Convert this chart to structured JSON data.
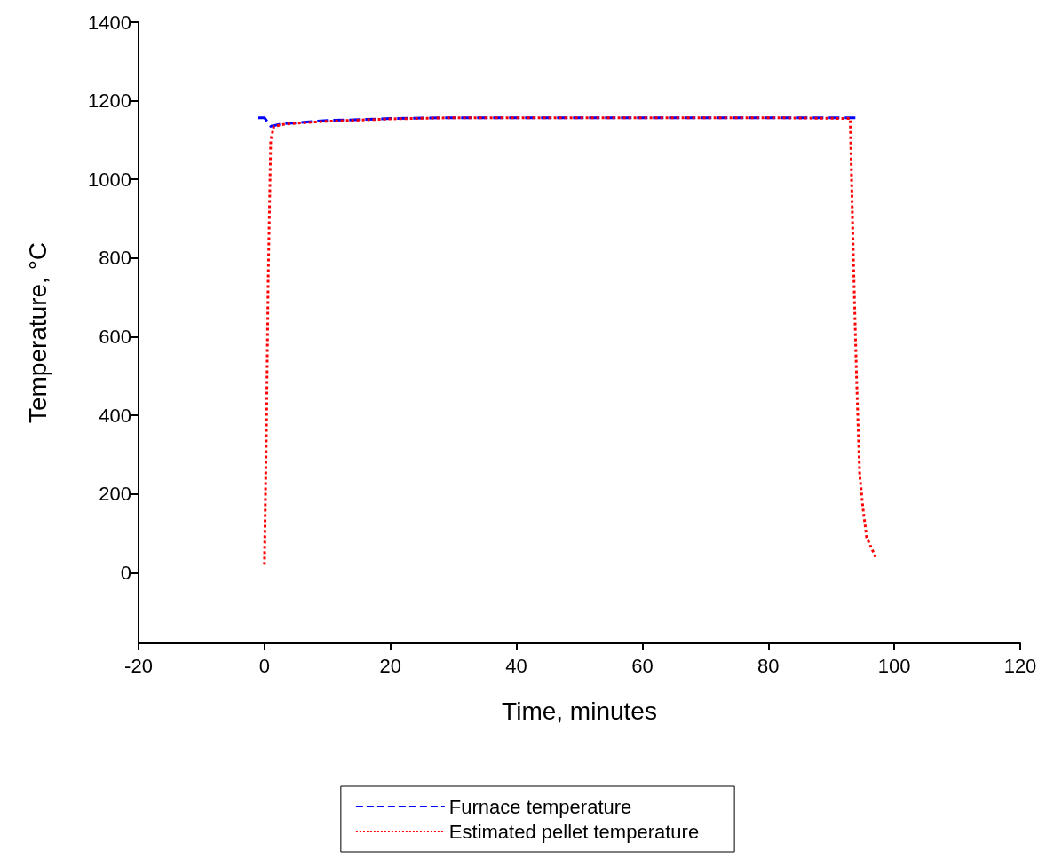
{
  "chart_data": {
    "type": "line",
    "xlabel": "Time, minutes",
    "ylabel": "Temperature, °C",
    "xlim": [
      -20,
      120
    ],
    "xticks": [
      -20,
      0,
      20,
      40,
      60,
      80,
      100,
      120
    ],
    "ylim": [
      -180,
      1400
    ],
    "yticks": [
      0,
      200,
      400,
      600,
      800,
      1000,
      1200,
      1400
    ],
    "grid": false,
    "legend": "bottom",
    "marker": "none",
    "series": [
      {
        "name": "Furnace temperature",
        "color": "#0000ff",
        "line_style": "dashed",
        "x": [
          -1,
          0,
          1,
          3,
          5,
          10,
          15,
          20,
          30,
          40,
          60,
          80,
          94
        ],
        "values": [
          1157,
          1157,
          1135,
          1142,
          1144,
          1150,
          1152,
          1155,
          1157,
          1157,
          1157,
          1157,
          1157
        ]
      },
      {
        "name": "Estimated pellet temperature",
        "color": "#ff0000",
        "line_style": "dotted",
        "x": [
          0,
          0.3,
          0.6,
          1,
          1.5,
          3,
          5,
          10,
          15,
          20,
          30,
          40,
          60,
          80,
          93,
          93.5,
          94,
          94.5,
          95,
          95.6,
          97
        ],
        "values": [
          20,
          350,
          750,
          1100,
          1135,
          1140,
          1143,
          1148,
          1151,
          1154,
          1157,
          1157,
          1157,
          1157,
          1155,
          800,
          500,
          250,
          167,
          90,
          40
        ]
      }
    ]
  }
}
